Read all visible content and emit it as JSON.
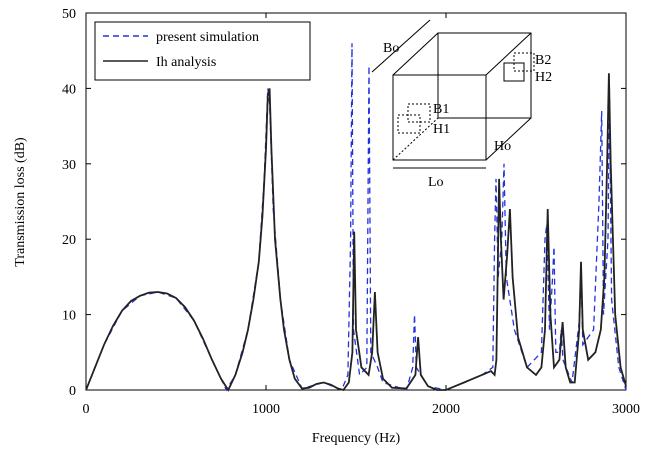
{
  "chart_data": {
    "type": "line",
    "xlabel": "Frequency (Hz)",
    "ylabel": "Transmission loss (dB)",
    "xlim": [
      0,
      3000
    ],
    "xticks": [
      0,
      1000,
      2000,
      3000
    ],
    "ylim": [
      0,
      50
    ],
    "yticks": [
      0,
      10,
      20,
      30,
      40,
      50
    ],
    "legend": "upper left",
    "inset_labels": [
      "Bo",
      "B1",
      "H1",
      "B2",
      "H2",
      "Ho",
      "Lo"
    ],
    "series": [
      {
        "name": "present simulation",
        "color": "#2233dd",
        "linestyle": "dashed",
        "x": [
          0,
          100,
          200,
          300,
          400,
          500,
          600,
          700,
          780,
          830,
          900,
          960,
          990,
          1010,
          1020,
          1040,
          1080,
          1130,
          1200,
          1320,
          1420,
          1455,
          1470,
          1478,
          1486,
          1520,
          1560,
          1572,
          1582,
          1620,
          1650,
          1780,
          1815,
          1825,
          1835,
          1900,
          2000,
          2100,
          2200,
          2260,
          2270,
          2278,
          2290,
          2310,
          2322,
          2335,
          2380,
          2450,
          2530,
          2550,
          2560,
          2575,
          2590,
          2600,
          2610,
          2630,
          2640,
          2650,
          2700,
          2740,
          2750,
          2760,
          2820,
          2850,
          2865,
          2875,
          2900,
          2908,
          2920,
          2960,
          3000
        ],
        "values": [
          0,
          6,
          10.5,
          12.5,
          13,
          12.2,
          9.2,
          4,
          0,
          2,
          8,
          17,
          28,
          40,
          38,
          24,
          12,
          4,
          0.2,
          1,
          0,
          2,
          20,
          46,
          8,
          2,
          3,
          43,
          5,
          3,
          1,
          0,
          3,
          10,
          3,
          0.5,
          0,
          1,
          2,
          3,
          20,
          28,
          15,
          20,
          30,
          15,
          8,
          3,
          5,
          20,
          22,
          8,
          14,
          19,
          5,
          5,
          8,
          4,
          1,
          9,
          16,
          6,
          8,
          25,
          37,
          10,
          20,
          40,
          12,
          3,
          0
        ]
      },
      {
        "name": "Ih analysis",
        "color": "#222222",
        "linestyle": "solid",
        "x": [
          0,
          50,
          100,
          150,
          200,
          250,
          300,
          350,
          400,
          450,
          500,
          550,
          600,
          650,
          700,
          750,
          790,
          830,
          870,
          900,
          930,
          960,
          980,
          1000,
          1010,
          1020,
          1030,
          1050,
          1080,
          1100,
          1130,
          1160,
          1200,
          1240,
          1280,
          1320,
          1360,
          1400,
          1430,
          1460,
          1480,
          1490,
          1500,
          1530,
          1570,
          1590,
          1605,
          1620,
          1650,
          1700,
          1780,
          1830,
          1845,
          1860,
          1900,
          1950,
          2000,
          2050,
          2100,
          2150,
          2200,
          2250,
          2270,
          2280,
          2295,
          2305,
          2320,
          2340,
          2355,
          2370,
          2400,
          2450,
          2500,
          2530,
          2550,
          2565,
          2580,
          2600,
          2630,
          2648,
          2665,
          2690,
          2715,
          2740,
          2750,
          2760,
          2790,
          2830,
          2860,
          2880,
          2895,
          2905,
          2915,
          2940,
          2970,
          3000
        ],
        "values": [
          0,
          3,
          6,
          8.5,
          10.5,
          11.8,
          12.5,
          12.9,
          13,
          12.8,
          12.2,
          11,
          9.2,
          6.8,
          4,
          1.5,
          0,
          2,
          5,
          8,
          12,
          17,
          23,
          32,
          39,
          40,
          32,
          20,
          12,
          8,
          4,
          1.5,
          0.2,
          0.3,
          0.8,
          1,
          0.7,
          0.2,
          0,
          1,
          5,
          21,
          8,
          3,
          2,
          5,
          13,
          5,
          1.5,
          0.3,
          0.2,
          2,
          7,
          2,
          0.5,
          0,
          0,
          0.5,
          1,
          1.5,
          2,
          2.5,
          2,
          4,
          28,
          20,
          12,
          18,
          24,
          15,
          7,
          3,
          2,
          3,
          8,
          24,
          10,
          3,
          4,
          9,
          3,
          1,
          1,
          8,
          17,
          8,
          4,
          5,
          8,
          15,
          30,
          42,
          30,
          10,
          3,
          0.5
        ]
      }
    ]
  }
}
